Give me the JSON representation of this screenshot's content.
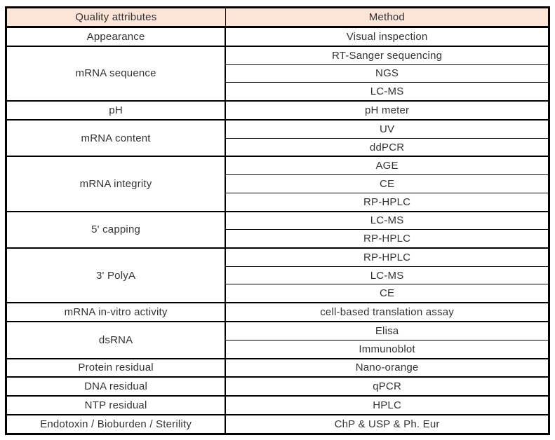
{
  "table": {
    "headers": {
      "attribute": "Quality attributes",
      "method": "Method"
    },
    "groups": [
      {
        "attribute": "Appearance",
        "methods": [
          "Visual inspection"
        ]
      },
      {
        "attribute": "mRNA sequence",
        "methods": [
          "RT-Sanger sequencing",
          "NGS",
          "LC-MS"
        ]
      },
      {
        "attribute": "pH",
        "methods": [
          "pH meter"
        ]
      },
      {
        "attribute": "mRNA content",
        "methods": [
          "UV",
          "ddPCR"
        ]
      },
      {
        "attribute": "mRNA integrity",
        "methods": [
          "AGE",
          "CE",
          "RP-HPLC"
        ]
      },
      {
        "attribute": "5' capping",
        "methods": [
          "LC-MS",
          "RP-HPLC"
        ]
      },
      {
        "attribute": "3' PolyA",
        "methods": [
          "RP-HPLC",
          "LC-MS",
          "CE"
        ]
      },
      {
        "attribute": "mRNA in-vitro activity",
        "methods": [
          "cell-based translation assay"
        ]
      },
      {
        "attribute": "dsRNA",
        "methods": [
          "Elisa",
          "Immunoblot"
        ]
      },
      {
        "attribute": "Protein residual",
        "methods": [
          "Nano-orange"
        ]
      },
      {
        "attribute": "DNA residual",
        "methods": [
          "qPCR"
        ]
      },
      {
        "attribute": "NTP residual",
        "methods": [
          "HPLC"
        ]
      },
      {
        "attribute": "Endotoxin / Bioburden / Sterility",
        "methods": [
          "ChP & USP & Ph. Eur"
        ]
      }
    ],
    "colors": {
      "header_bg": "#FCE4D6",
      "border": "#000000",
      "text": "#333333"
    }
  }
}
